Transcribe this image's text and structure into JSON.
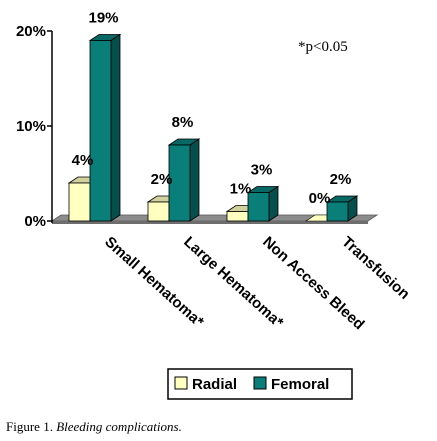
{
  "chart_data": {
    "type": "bar",
    "categories": [
      "Small Hematoma*",
      "Large Hematoma*",
      "Non Access Bleed",
      "Transfusion"
    ],
    "series": [
      {
        "name": "Radial",
        "values": [
          4,
          2,
          1,
          0
        ],
        "labels": [
          "4%",
          "2%",
          "1%",
          "0%"
        ],
        "color": "#ffffc0"
      },
      {
        "name": "Femoral",
        "values": [
          19,
          8,
          3,
          2
        ],
        "labels": [
          "19%",
          "8%",
          "3%",
          "2%"
        ],
        "color": "#0a7f7a"
      }
    ],
    "yticks": [
      0,
      10,
      20
    ],
    "ytick_labels": [
      "0%",
      "10%",
      "20%"
    ],
    "ylim": [
      0,
      20
    ],
    "annotation": "*p<0.05",
    "legend_position": "bottom",
    "grid": false
  },
  "caption": {
    "lead": "Figure 1.",
    "text": "Bleeding complications."
  }
}
